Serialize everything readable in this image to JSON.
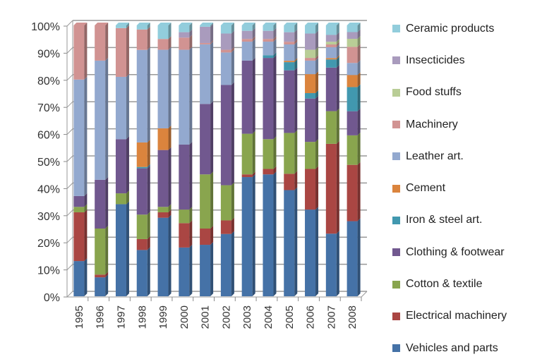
{
  "chart_data": {
    "type": "bar",
    "stacked": "percent",
    "title": "",
    "xlabel": "",
    "ylabel": "",
    "ylim": [
      0,
      100
    ],
    "yticks": [
      "0%",
      "10%",
      "20%",
      "30%",
      "40%",
      "50%",
      "60%",
      "70%",
      "80%",
      "90%",
      "100%"
    ],
    "grid": true,
    "legend_position": "right",
    "categories": [
      "1995",
      "1996",
      "1997",
      "1998",
      "1999",
      "2000",
      "2001",
      "2002",
      "2003",
      "2004",
      "2005",
      "2006",
      "2007",
      "2008"
    ],
    "series": [
      {
        "name": "Vehicles and parts",
        "color": "#4572A7",
        "values": [
          13,
          7,
          34,
          17,
          29,
          18,
          19,
          23,
          44,
          45,
          39,
          32,
          23,
          28
        ]
      },
      {
        "name": "Electrical machinery",
        "color": "#AA4643",
        "values": [
          18,
          1,
          0,
          4,
          2,
          9,
          6,
          5,
          1,
          2,
          6,
          15,
          33,
          21
        ]
      },
      {
        "name": "Cotton & textile",
        "color": "#89A54E",
        "values": [
          2,
          17,
          4,
          9,
          2,
          5,
          20,
          13,
          15,
          11,
          15,
          10,
          12,
          11
        ]
      },
      {
        "name": "Clothing & footwear",
        "color": "#71588F",
        "values": [
          4,
          18,
          20,
          17,
          21,
          24,
          26,
          37,
          27,
          30,
          23,
          16,
          16,
          9
        ]
      },
      {
        "name": "Iron & steel art.",
        "color": "#4198AF",
        "values": [
          0,
          0,
          0,
          0.5,
          0,
          0,
          0,
          0,
          0,
          1,
          3,
          2,
          3,
          9
        ]
      },
      {
        "name": "Cement",
        "color": "#DB843D",
        "values": [
          0,
          0,
          0,
          9,
          8,
          0,
          0,
          0,
          0,
          0,
          0.5,
          7,
          0.5,
          4.5
        ]
      },
      {
        "name": "Leather art.",
        "color": "#93A9CF",
        "values": [
          43,
          44,
          23,
          34,
          29,
          35,
          22,
          12,
          7,
          5,
          6,
          5,
          4,
          4.5
        ]
      },
      {
        "name": "Machinery",
        "color": "#D19392",
        "values": [
          20,
          13,
          18,
          7.5,
          4,
          4.5,
          0.5,
          1,
          1,
          1,
          1,
          1,
          1,
          6
        ]
      },
      {
        "name": "Food stuffs",
        "color": "#B9CD96",
        "values": [
          0,
          0,
          0,
          0,
          0,
          0,
          0,
          0,
          0,
          0,
          0,
          3,
          1,
          3
        ]
      },
      {
        "name": "Insecticides",
        "color": "#A99BBD",
        "values": [
          0,
          0,
          0,
          0,
          0,
          2,
          6,
          6,
          3,
          3,
          3.5,
          6,
          2.5,
          2.5
        ]
      },
      {
        "name": "Ceramic products",
        "color": "#92CDDC",
        "values": [
          0,
          0,
          1,
          1.5,
          5,
          2.5,
          0.5,
          3,
          2,
          2,
          2.5,
          3,
          3.5,
          2.5
        ]
      }
    ]
  }
}
